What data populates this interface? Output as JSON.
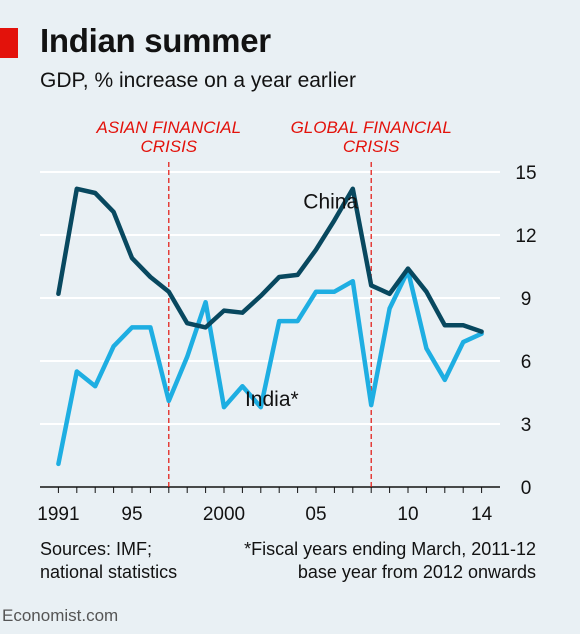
{
  "header": {
    "title": "Indian summer",
    "subtitle": "GDP, % increase on a year earlier"
  },
  "footer": {
    "sources_line1": "Sources: IMF;",
    "sources_line2": "national statistics",
    "note_line1": "*Fiscal years ending March, 2011-12",
    "note_line2": "base year from 2012 onwards",
    "brand": "Economist.com"
  },
  "colors": {
    "china": "#08485f",
    "india": "#1eaee2",
    "annotation": "#e3120b",
    "grid": "#ffffff"
  },
  "chart_data": {
    "type": "line",
    "x": [
      1991,
      1992,
      1993,
      1994,
      1995,
      1996,
      1997,
      1998,
      1999,
      2000,
      2001,
      2002,
      2003,
      2004,
      2005,
      2006,
      2007,
      2008,
      2009,
      2010,
      2011,
      2012,
      2013,
      2014
    ],
    "x_tick_values": [
      1991,
      1995,
      2000,
      2005,
      2010,
      2014
    ],
    "x_tick_labels": [
      "1991",
      "95",
      "2000",
      "05",
      "10",
      "14"
    ],
    "xlim": [
      1990,
      2015
    ],
    "ylim": [
      0,
      15
    ],
    "y_ticks": [
      0,
      3,
      6,
      9,
      12,
      15
    ],
    "y_axis_side": "right",
    "grid": true,
    "series": [
      {
        "name": "China",
        "key": "china",
        "label_pos": [
          2005.8,
          13.6
        ],
        "values": [
          9.2,
          14.2,
          14.0,
          13.1,
          10.9,
          10.0,
          9.3,
          7.8,
          7.6,
          8.4,
          8.3,
          9.1,
          10.0,
          10.1,
          11.3,
          12.7,
          14.2,
          9.6,
          9.2,
          10.4,
          9.3,
          7.7,
          7.7,
          7.4
        ]
      },
      {
        "name": "India*",
        "key": "india",
        "label_pos": [
          2002.6,
          4.2
        ],
        "values": [
          1.1,
          5.5,
          4.8,
          6.7,
          7.6,
          7.6,
          4.1,
          6.2,
          8.8,
          3.8,
          4.8,
          3.8,
          7.9,
          7.9,
          9.3,
          9.3,
          9.8,
          3.9,
          8.5,
          10.3,
          6.6,
          5.1,
          6.9,
          7.3
        ]
      }
    ],
    "annotations": [
      {
        "x": 1997,
        "label_line1": "ASIAN FINANCIAL",
        "label_line2": "CRISIS"
      },
      {
        "x": 2008,
        "label_line1": "GLOBAL FINANCIAL",
        "label_line2": "CRISIS"
      }
    ]
  }
}
